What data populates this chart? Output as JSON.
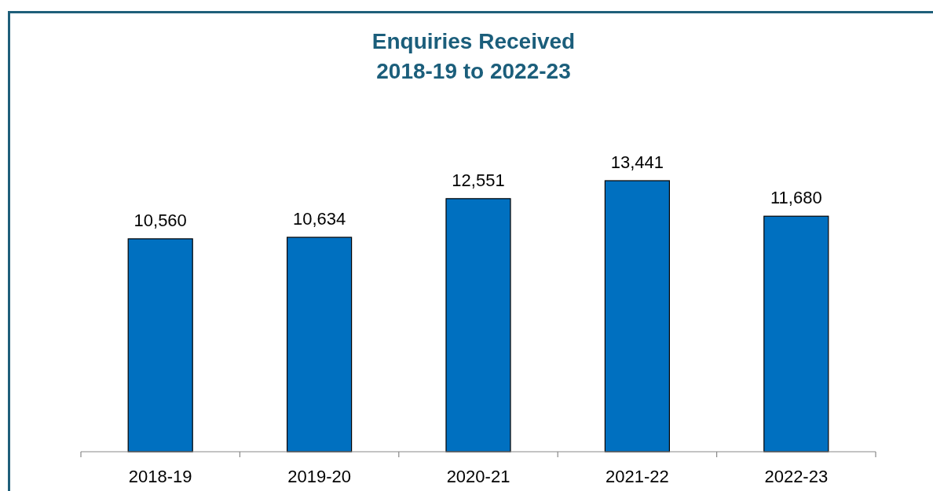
{
  "chart_data": {
    "type": "bar",
    "title": "Enquiries Received\n2018-19 to 2022-23",
    "categories": [
      "2018-19",
      "2019-20",
      "2020-21",
      "2021-22",
      "2022-23"
    ],
    "values": [
      10560,
      10634,
      12551,
      13441,
      11680
    ],
    "value_labels": [
      "10,560",
      "10,634",
      "12,551",
      "13,441",
      "11,680"
    ],
    "color": "#0070c0"
  }
}
